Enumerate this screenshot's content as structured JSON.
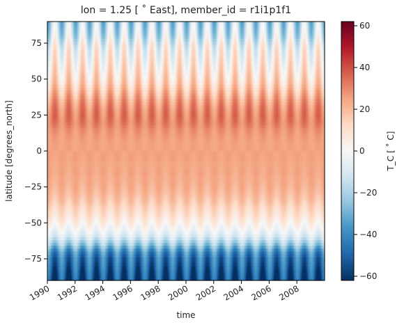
{
  "chart_data": {
    "type": "heatmap",
    "title": "lon = 1.25 [$^\\circ$ East], member_id = r1i1p1f1",
    "title_display": "lon = 1.25 [ ˚ East], member_id = r1i1p1f1",
    "xlabel": "time",
    "ylabel": "latitude [degrees_north]",
    "colorbar_label": "T_C [ ˚ C]",
    "colormap": "RdBu_r",
    "colormap_stops": [
      "#053061",
      "#2166ac",
      "#4393c3",
      "#92c5de",
      "#d1e5f0",
      "#f7f7f7",
      "#fddbc7",
      "#f4a582",
      "#d6604d",
      "#b2182b",
      "#67001f"
    ],
    "x_range": [
      "1990-01",
      "2009-12"
    ],
    "x_ticks": [
      "1990",
      "1992",
      "1994",
      "1996",
      "1998",
      "2000",
      "2002",
      "2004",
      "2006",
      "2008"
    ],
    "y_range": [
      -90,
      90
    ],
    "y_ticks": [
      -75,
      -50,
      -25,
      0,
      25,
      50,
      75
    ],
    "clim": [
      -62,
      62
    ],
    "colorbar_ticks": [
      -60,
      -40,
      -20,
      0,
      20,
      40,
      60
    ],
    "latitude_profile": {
      "latitude": [
        -90,
        -85,
        -80,
        -75,
        -70,
        -65,
        -60,
        -55,
        -50,
        -45,
        -40,
        -35,
        -30,
        -25,
        -20,
        -15,
        -10,
        -5,
        0,
        5,
        10,
        15,
        20,
        25,
        30,
        35,
        40,
        45,
        50,
        55,
        60,
        65,
        70,
        75,
        80,
        85,
        90
      ],
      "annual_mean": [
        -55,
        -52,
        -48,
        -45,
        -38,
        -22,
        -10,
        -2,
        4,
        9,
        13,
        17,
        20,
        22,
        23,
        24,
        24,
        25,
        25,
        25,
        26,
        28,
        31,
        31,
        29,
        25,
        20,
        15,
        11,
        8,
        5,
        2,
        0,
        -5,
        -12,
        -15,
        -18
      ],
      "seasonal_amplitude": [
        14,
        14,
        13,
        12,
        11,
        9,
        6,
        5,
        5,
        5,
        4,
        4,
        3,
        3,
        2,
        2,
        1,
        1,
        1,
        1,
        2,
        3,
        5,
        7,
        8,
        9,
        10,
        10,
        11,
        12,
        13,
        14,
        15,
        16,
        17,
        17,
        17
      ]
    }
  }
}
